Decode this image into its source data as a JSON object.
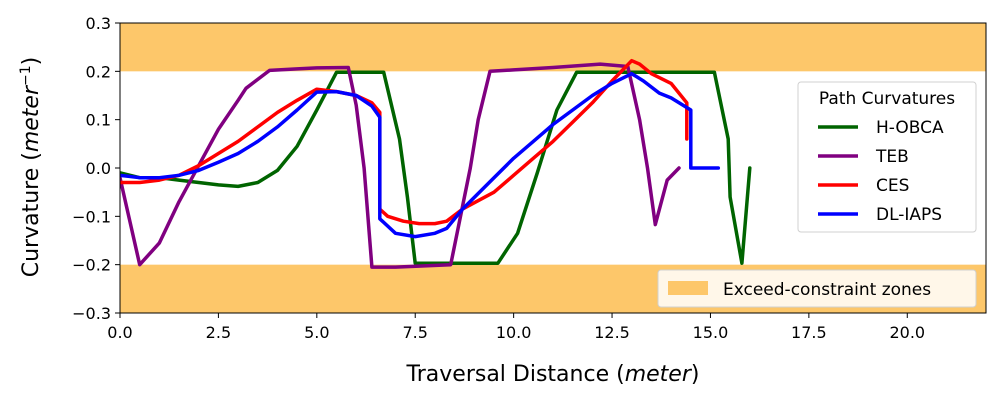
{
  "chart_data": {
    "type": "line",
    "xlabel_main": "Traversal Distance (",
    "xlabel_italic": "meter",
    "xlabel_end": ")",
    "ylabel_main": "Curvature (",
    "ylabel_italic": "meter",
    "ylabel_sup": "−1",
    "ylabel_end": ")",
    "xlim": [
      0,
      22
    ],
    "ylim": [
      -0.3,
      0.3
    ],
    "xticks": [
      0.0,
      2.5,
      5.0,
      7.5,
      10.0,
      12.5,
      15.0,
      17.5,
      20.0
    ],
    "xtick_labels": [
      "0.0",
      "2.5",
      "5.0",
      "7.5",
      "10.0",
      "12.5",
      "15.0",
      "17.5",
      "20.0"
    ],
    "yticks": [
      -0.3,
      -0.2,
      -0.1,
      0.0,
      0.1,
      0.2,
      0.3
    ],
    "ytick_labels": [
      "−0.3",
      "−0.2",
      "−0.1",
      "0.0",
      "0.1",
      "0.2",
      "0.3"
    ],
    "grid": false,
    "zones": {
      "label": "Exceed-constraint zones",
      "color": "#fdc76a",
      "ranges": [
        [
          0.2,
          0.3
        ],
        [
          -0.3,
          -0.2
        ]
      ]
    },
    "legend": {
      "title": "Path Curvatures",
      "placement": "center-right"
    },
    "zones_legend_placement": "lower-right",
    "series": [
      {
        "name": "H-OBCA",
        "color": "#006400",
        "points": [
          [
            0.0,
            -0.01
          ],
          [
            0.5,
            -0.02
          ],
          [
            1.0,
            -0.02
          ],
          [
            1.5,
            -0.025
          ],
          [
            2.0,
            -0.03
          ],
          [
            2.5,
            -0.035
          ],
          [
            3.0,
            -0.038
          ],
          [
            3.5,
            -0.03
          ],
          [
            4.0,
            -0.005
          ],
          [
            4.5,
            0.045
          ],
          [
            5.0,
            0.12
          ],
          [
            5.5,
            0.198
          ],
          [
            6.0,
            0.198
          ],
          [
            6.7,
            0.198
          ],
          [
            7.1,
            0.06
          ],
          [
            7.3,
            -0.06
          ],
          [
            7.5,
            -0.197
          ],
          [
            8.0,
            -0.197
          ],
          [
            9.0,
            -0.197
          ],
          [
            9.6,
            -0.197
          ],
          [
            10.1,
            -0.135
          ],
          [
            10.6,
            -0.01
          ],
          [
            11.1,
            0.12
          ],
          [
            11.6,
            0.198
          ],
          [
            12.5,
            0.198
          ],
          [
            13.5,
            0.198
          ],
          [
            14.5,
            0.198
          ],
          [
            15.1,
            0.198
          ],
          [
            15.45,
            0.06
          ],
          [
            15.5,
            -0.06
          ],
          [
            15.8,
            -0.197
          ],
          [
            16.0,
            0.0
          ]
        ]
      },
      {
        "name": "TEB",
        "color": "#800080",
        "points": [
          [
            0.0,
            -0.02
          ],
          [
            0.5,
            -0.2
          ],
          [
            1.0,
            -0.155
          ],
          [
            1.5,
            -0.07
          ],
          [
            2.0,
            0.005
          ],
          [
            2.5,
            0.08
          ],
          [
            3.0,
            0.14
          ],
          [
            3.2,
            0.165
          ],
          [
            3.8,
            0.202
          ],
          [
            4.5,
            0.205
          ],
          [
            5.0,
            0.207
          ],
          [
            5.8,
            0.208
          ],
          [
            6.0,
            0.13
          ],
          [
            6.2,
            0.0
          ],
          [
            6.4,
            -0.205
          ],
          [
            7.0,
            -0.205
          ],
          [
            8.4,
            -0.2
          ],
          [
            8.9,
            0.0
          ],
          [
            9.1,
            0.1
          ],
          [
            9.4,
            0.2
          ],
          [
            10.0,
            0.203
          ],
          [
            11.0,
            0.208
          ],
          [
            12.2,
            0.215
          ],
          [
            12.9,
            0.21
          ],
          [
            13.2,
            0.1
          ],
          [
            13.4,
            0.0
          ],
          [
            13.6,
            -0.117
          ],
          [
            13.9,
            -0.025
          ],
          [
            14.2,
            0.0
          ]
        ]
      },
      {
        "name": "CES",
        "color": "#ff0000",
        "points": [
          [
            0.0,
            -0.03
          ],
          [
            0.5,
            -0.03
          ],
          [
            1.0,
            -0.025
          ],
          [
            1.5,
            -0.015
          ],
          [
            2.0,
            0.005
          ],
          [
            2.5,
            0.03
          ],
          [
            3.0,
            0.055
          ],
          [
            3.5,
            0.085
          ],
          [
            4.0,
            0.115
          ],
          [
            4.5,
            0.14
          ],
          [
            5.0,
            0.163
          ],
          [
            5.5,
            0.158
          ],
          [
            6.0,
            0.15
          ],
          [
            6.4,
            0.135
          ],
          [
            6.6,
            0.115
          ],
          [
            6.6,
            -0.085
          ],
          [
            6.8,
            -0.1
          ],
          [
            7.2,
            -0.11
          ],
          [
            7.6,
            -0.115
          ],
          [
            8.0,
            -0.115
          ],
          [
            8.3,
            -0.11
          ],
          [
            8.7,
            -0.085
          ],
          [
            9.5,
            -0.05
          ],
          [
            10.0,
            -0.015
          ],
          [
            10.5,
            0.02
          ],
          [
            11.0,
            0.055
          ],
          [
            11.5,
            0.095
          ],
          [
            12.0,
            0.135
          ],
          [
            12.5,
            0.18
          ],
          [
            13.0,
            0.222
          ],
          [
            13.2,
            0.215
          ],
          [
            13.5,
            0.195
          ],
          [
            14.0,
            0.175
          ],
          [
            14.4,
            0.135
          ],
          [
            14.4,
            0.06
          ]
        ]
      },
      {
        "name": "DL-IAPS",
        "color": "#0000ff",
        "points": [
          [
            0.0,
            -0.015
          ],
          [
            0.5,
            -0.02
          ],
          [
            1.0,
            -0.02
          ],
          [
            1.5,
            -0.015
          ],
          [
            2.0,
            -0.005
          ],
          [
            2.5,
            0.012
          ],
          [
            3.0,
            0.03
          ],
          [
            3.5,
            0.055
          ],
          [
            4.0,
            0.085
          ],
          [
            4.5,
            0.12
          ],
          [
            5.0,
            0.157
          ],
          [
            5.5,
            0.158
          ],
          [
            6.0,
            0.15
          ],
          [
            6.4,
            0.128
          ],
          [
            6.6,
            0.105
          ],
          [
            6.6,
            -0.105
          ],
          [
            7.0,
            -0.135
          ],
          [
            7.5,
            -0.142
          ],
          [
            8.0,
            -0.135
          ],
          [
            8.3,
            -0.125
          ],
          [
            8.7,
            -0.085
          ],
          [
            9.5,
            -0.02
          ],
          [
            10.0,
            0.02
          ],
          [
            10.5,
            0.055
          ],
          [
            11.0,
            0.09
          ],
          [
            11.5,
            0.12
          ],
          [
            12.0,
            0.15
          ],
          [
            12.5,
            0.175
          ],
          [
            13.0,
            0.195
          ],
          [
            13.3,
            0.18
          ],
          [
            13.7,
            0.155
          ],
          [
            14.0,
            0.145
          ],
          [
            14.5,
            0.12
          ],
          [
            14.5,
            0.0
          ],
          [
            15.2,
            0.0
          ]
        ]
      }
    ]
  }
}
